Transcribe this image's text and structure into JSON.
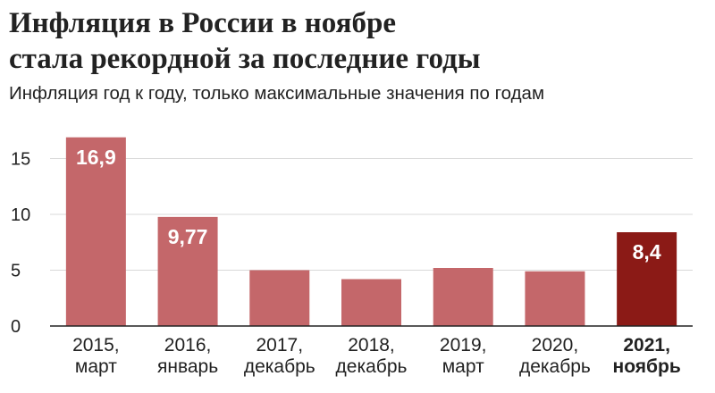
{
  "chart_data": {
    "type": "bar",
    "title_lines": [
      "Инфляция в России в ноябре",
      "стала рекордной за последние годы"
    ],
    "subtitle": "Инфляция год к году, только максимальные значения по годам",
    "xlabel": "",
    "ylabel": "",
    "ylim": [
      0,
      18
    ],
    "yticks": [
      "0",
      "5",
      "10",
      "15"
    ],
    "ytick_values": [
      0,
      5,
      10,
      15
    ],
    "grid": true,
    "categories": [
      [
        "2015,",
        "март"
      ],
      [
        "2016,",
        "январь"
      ],
      [
        "2017,",
        "декабрь"
      ],
      [
        "2018,",
        "декабрь"
      ],
      [
        "2019,",
        "март"
      ],
      [
        "2020,",
        "декабрь"
      ],
      [
        "2021,",
        "ноябрь"
      ]
    ],
    "values": [
      16.9,
      9.77,
      5.0,
      4.2,
      5.2,
      4.9,
      8.4
    ],
    "data_labels": [
      "16,9",
      "9,77",
      "",
      "",
      "",
      "",
      "8,4"
    ],
    "highlight_index": 6,
    "colors": {
      "bar": "#c4676a",
      "highlight": "#8b1a16",
      "grid": "#d9d9d9",
      "axis": "#222222"
    }
  }
}
